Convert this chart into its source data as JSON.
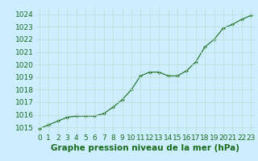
{
  "x": [
    0,
    1,
    2,
    3,
    4,
    5,
    6,
    7,
    8,
    9,
    10,
    11,
    12,
    13,
    14,
    15,
    16,
    17,
    18,
    19,
    20,
    21,
    22,
    23
  ],
  "y": [
    1014.9,
    1015.2,
    1015.5,
    1015.8,
    1015.9,
    1015.9,
    1015.9,
    1016.1,
    1016.6,
    1017.2,
    1018.0,
    1019.1,
    1019.4,
    1019.4,
    1019.1,
    1019.1,
    1019.5,
    1020.2,
    1021.4,
    1022.0,
    1022.9,
    1023.2,
    1023.6,
    1023.9
  ],
  "line_color": "#1a6b1a",
  "marker_color": "#1a6b1a",
  "bg_color": "#cceeff",
  "grid_color": "#bbddd0",
  "xlabel": "Graphe pression niveau de la mer (hPa)",
  "xlabel_color": "#1a6b1a",
  "tick_color": "#1a6b1a",
  "ylim": [
    1014.5,
    1024.5
  ],
  "yticks": [
    1015,
    1016,
    1017,
    1018,
    1019,
    1020,
    1021,
    1022,
    1023,
    1024
  ],
  "xticks": [
    0,
    1,
    2,
    3,
    4,
    5,
    6,
    7,
    8,
    9,
    10,
    11,
    12,
    13,
    14,
    15,
    16,
    17,
    18,
    19,
    20,
    21,
    22,
    23
  ],
  "font_size": 6.5,
  "xlabel_fontsize": 7.5
}
